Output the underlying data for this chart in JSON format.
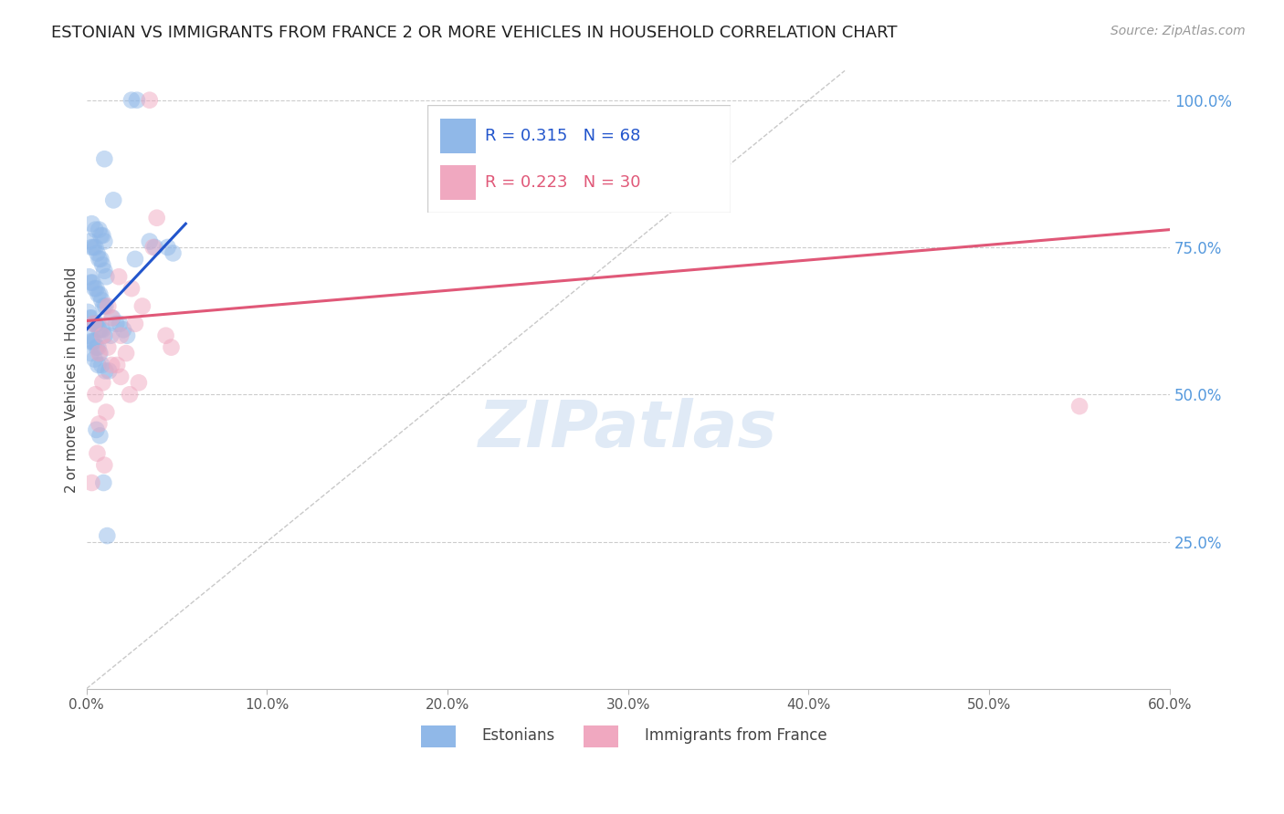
{
  "title": "ESTONIAN VS IMMIGRANTS FROM FRANCE 2 OR MORE VEHICLES IN HOUSEHOLD CORRELATION CHART",
  "source_text": "Source: ZipAtlas.com",
  "ylabel": "2 or more Vehicles in Household",
  "xlabel_ticks": [
    "0.0%",
    "10.0%",
    "20.0%",
    "30.0%",
    "40.0%",
    "50.0%",
    "60.0%"
  ],
  "xlabel_vals": [
    0.0,
    10.0,
    20.0,
    30.0,
    40.0,
    50.0,
    60.0
  ],
  "ylabel_ticks_right": [
    "100.0%",
    "75.0%",
    "50.0%",
    "25.0%"
  ],
  "ylabel_vals_right": [
    100.0,
    75.0,
    50.0,
    25.0
  ],
  "xmin": 0.0,
  "xmax": 60.0,
  "ymin": 0.0,
  "ymax": 105.0,
  "R_blue": 0.315,
  "N_blue": 68,
  "R_pink": 0.223,
  "N_pink": 30,
  "blue_color": "#90b8e8",
  "pink_color": "#f0a8c0",
  "blue_line_color": "#2255cc",
  "pink_line_color": "#e05878",
  "legend_blue_label": "Estonians",
  "legend_pink_label": "Immigrants from France",
  "title_fontsize": 13,
  "axis_label_color": "#5599dd",
  "grid_color": "#cccccc",
  "blue_scatter_x": [
    2.5,
    2.8,
    1.0,
    1.5,
    0.3,
    0.5,
    0.7,
    0.8,
    0.9,
    1.0,
    0.2,
    0.3,
    0.4,
    0.5,
    0.6,
    0.7,
    0.8,
    0.9,
    1.0,
    1.1,
    0.15,
    0.25,
    0.35,
    0.45,
    0.55,
    0.65,
    0.75,
    0.85,
    0.95,
    1.05,
    0.1,
    0.2,
    0.3,
    0.4,
    0.5,
    0.6,
    0.7,
    0.8,
    0.9,
    1.0,
    0.15,
    0.25,
    0.35,
    0.45,
    0.55,
    0.65,
    0.75,
    3.5,
    3.8,
    0.25,
    0.45,
    0.65,
    0.85,
    1.05,
    1.25,
    1.45,
    1.65,
    1.85,
    2.05,
    2.25,
    4.5,
    4.8,
    0.55,
    0.75,
    0.95,
    2.7,
    1.15,
    1.35
  ],
  "blue_scatter_y": [
    100.0,
    100.0,
    90.0,
    83.0,
    79.0,
    78.0,
    78.0,
    77.0,
    77.0,
    76.0,
    76.0,
    75.0,
    75.0,
    75.0,
    74.0,
    73.0,
    73.0,
    72.0,
    71.0,
    70.0,
    70.0,
    69.0,
    69.0,
    68.0,
    68.0,
    67.0,
    67.0,
    66.0,
    65.0,
    65.0,
    64.0,
    63.0,
    63.0,
    62.0,
    62.0,
    62.0,
    61.0,
    61.0,
    61.0,
    60.0,
    60.0,
    59.0,
    59.0,
    59.0,
    58.0,
    58.0,
    57.0,
    76.0,
    75.0,
    57.0,
    56.0,
    55.0,
    55.0,
    54.0,
    54.0,
    63.0,
    62.0,
    62.0,
    61.0,
    60.0,
    75.0,
    74.0,
    44.0,
    43.0,
    35.0,
    73.0,
    26.0,
    60.0
  ],
  "pink_scatter_x": [
    3.5,
    0.4,
    1.2,
    1.8,
    2.5,
    0.9,
    1.4,
    1.9,
    2.7,
    3.1,
    0.7,
    1.2,
    1.7,
    2.2,
    3.9,
    3.7,
    0.5,
    0.9,
    1.4,
    1.9,
    2.4,
    2.9,
    0.7,
    1.1,
    4.4,
    4.7,
    0.3,
    0.6,
    1.0,
    55.0
  ],
  "pink_scatter_y": [
    100.0,
    62.0,
    65.0,
    70.0,
    68.0,
    60.0,
    63.0,
    60.0,
    62.0,
    65.0,
    57.0,
    58.0,
    55.0,
    57.0,
    80.0,
    75.0,
    50.0,
    52.0,
    55.0,
    53.0,
    50.0,
    52.0,
    45.0,
    47.0,
    60.0,
    58.0,
    35.0,
    40.0,
    38.0,
    48.0
  ],
  "blue_reg_x0": 0.0,
  "blue_reg_x1": 5.5,
  "blue_reg_y0": 61.0,
  "blue_reg_y1": 79.0,
  "pink_reg_x0": 0.0,
  "pink_reg_x1": 60.0,
  "pink_reg_y0": 62.5,
  "pink_reg_y1": 78.0,
  "ref_x0": 0.0,
  "ref_x1": 42.0,
  "ref_y0": 0.0,
  "ref_y1": 105.0,
  "watermark_text": "ZIPatlas",
  "watermark_color": "#ccddf0"
}
